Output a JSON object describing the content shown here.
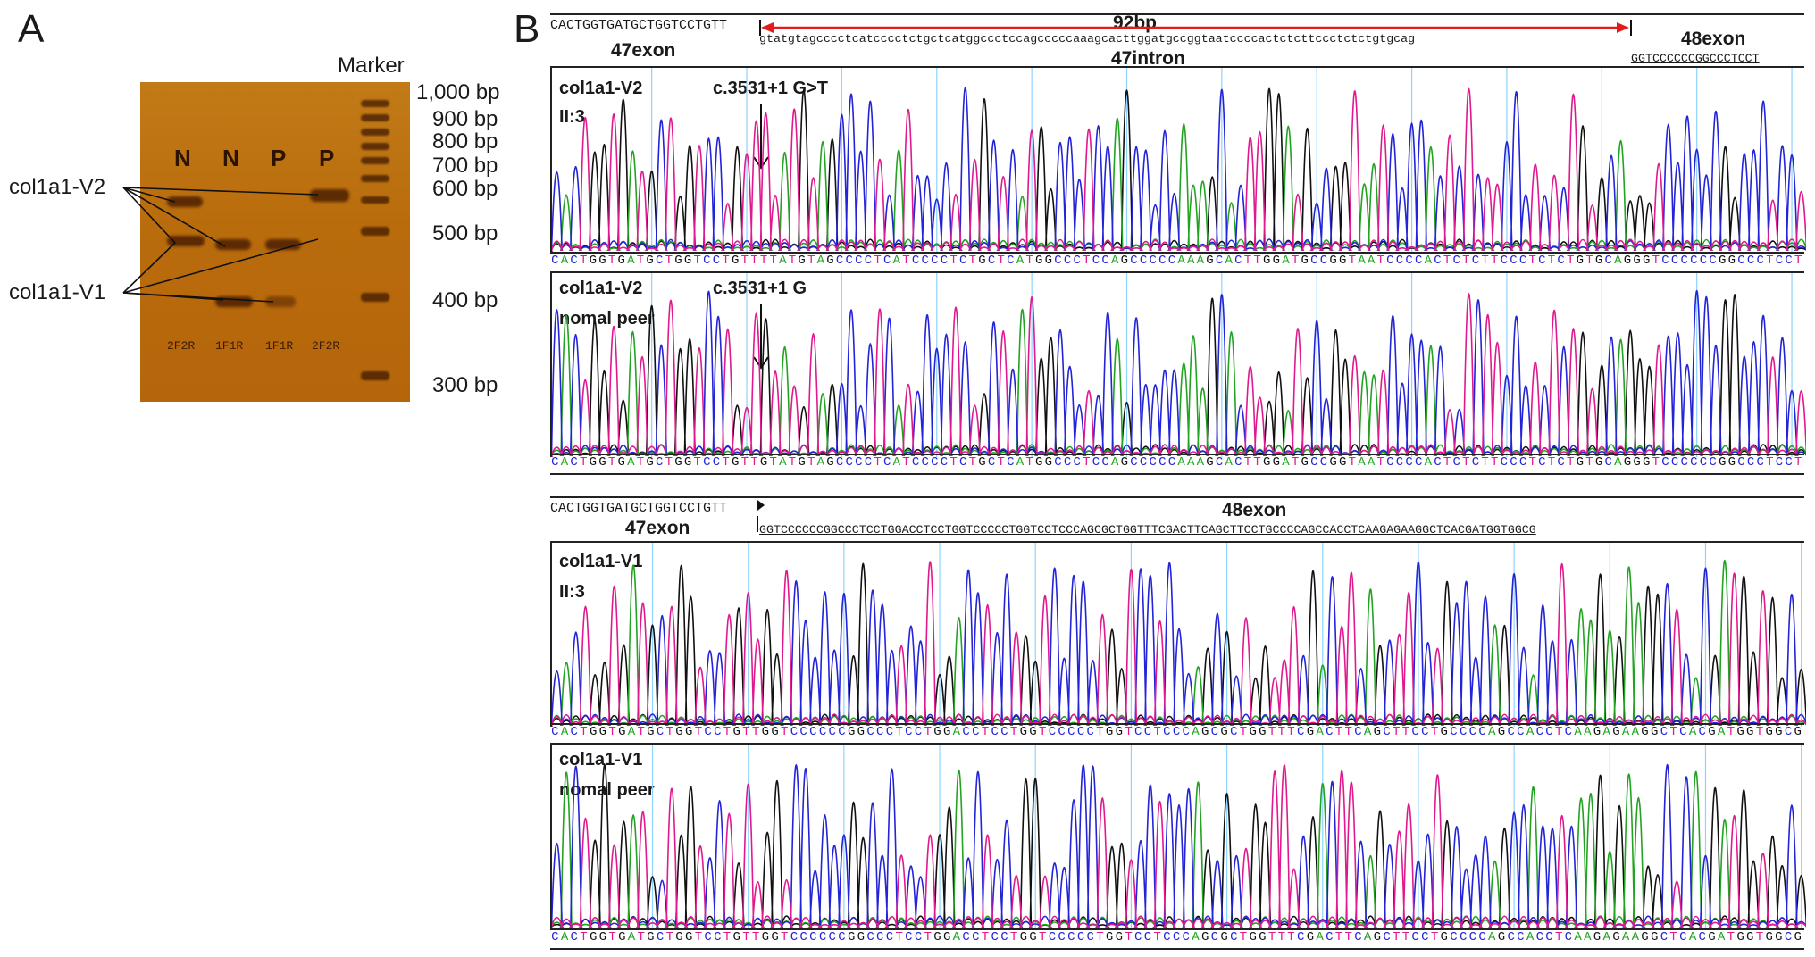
{
  "panel_a": {
    "letter": "A",
    "marker_label": "Marker",
    "lane_heads": [
      "N",
      "N",
      "P",
      "P"
    ],
    "lane_foots": [
      "2F2R",
      "1F1R",
      "1F1R",
      "2F2R"
    ],
    "size_labels": [
      "1,000 bp",
      "900 bp",
      "800 bp",
      "700 bp",
      "600 bp",
      "500 bp",
      "400 bp",
      "300 bp"
    ],
    "variant_labels": [
      "col1a1-V2",
      "col1a1-V1"
    ],
    "colors": {
      "gel": "#b96c0c",
      "band": "#3c1400"
    }
  },
  "panel_b": {
    "letter": "B",
    "v2_header": {
      "exon47_seq": "CACTGGTGATGCTGGTCCTGTT",
      "exon47_label": "47exon",
      "span_label": "92bp",
      "intron_seq": "gtatgtagcccctcatcccctctgctcatggccctccagcccccaaagcacttggatgccggtaatccccactctcttccctctctgtgcag",
      "intron_label": "47intron",
      "exon48_label": "48exon",
      "exon48_seq": "GGTCCCCCCGGCCCTCCT"
    },
    "v1_header": {
      "exon47_seq": "CACTGGTGATGCTGGTCCTGTT",
      "exon47_label": "47exon",
      "exon48_label": "48exon",
      "exon48_seq": "GGTCCCCCCGGCCCTCCTGGACCTCCTGGTCCCCCTGGTCCTCCCAGCGCTGGTTTCGACTTCAGCTTCCTGCCCCAGCCACCTCAAGAGAAGGCTCACGATGGTGGCG"
    },
    "traces": [
      {
        "title": "col1a1-V2",
        "subtitle": "II:3",
        "annotation": "c.3531+1 G>T",
        "sequence": "CACTGGTGATGCTGGTCCTGTTTTATGTAGCCCCTCATCCCCTCTGCTCATGGCCCTCCAGCCCCCAAAGCACTTGGATGCCGGTAATCCCCACTCTCTTCCCTCTCTGTGCAGGGTCCCCCCGGCCCTCCT"
      },
      {
        "title": "col1a1-V2",
        "subtitle": "nomal peer",
        "annotation": "c.3531+1 G",
        "sequence": "CACTGGTGATGCTGGTCCTGTTGTATGTAGCCCCTCATCCCCTCTGCTCATGGCCCTCCAGCCCCCAAAGCACTTGGATGCCGGTAATCCCCACTCTCTTCCCTCTCTGTGCAGGGTCCCCCCGGCCCTCCT"
      },
      {
        "title": "col1a1-V1",
        "subtitle": "II:3",
        "annotation": "",
        "sequence": "CACTGGTGATGCTGGTCCTGTTGGTCCCCCCGGCCCTCCTGGACCTCCTGGTCCCCCTGGTCCTCCCAGCGCTGGTTTCGACTTCAGCTTCCTGCCCCAGCCACCTCAAGAGAAGGCTCACGATGGTGGCG"
      },
      {
        "title": "col1a1-V1",
        "subtitle": "nomal peer",
        "annotation": "",
        "sequence": "CACTGGTGATGCTGGTCCTGTTGGTCCCCCCGGCCCTCCTGGACCTCCTGGTCCCCCTGGTCCTCCCAGCGCTGGTTTCGACTTCAGCTTCCTGCCCCAGCCACCTCAAGAGAAGGCTCACGATGGTGGCG"
      }
    ],
    "base_colors": {
      "A": "#22a322",
      "C": "#2323d8",
      "G": "#111111",
      "T": "#e0198f"
    },
    "arrow_color": "#e21b1b"
  }
}
